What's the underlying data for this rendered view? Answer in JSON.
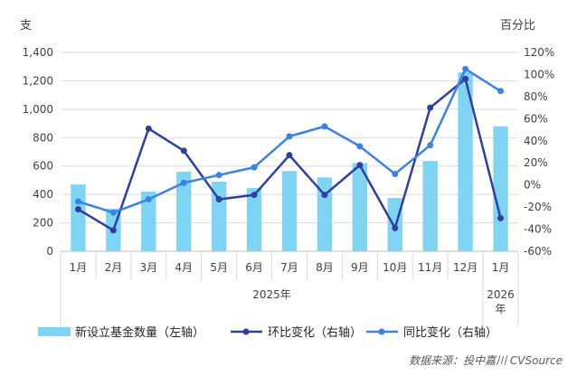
{
  "chart_data": {
    "type": "bar",
    "left_unit": "支",
    "right_unit": "百分比",
    "categories": [
      "1月",
      "2月",
      "3月",
      "4月",
      "5月",
      "6月",
      "7月",
      "8月",
      "9月",
      "10月",
      "11月",
      "12月",
      "1月"
    ],
    "year_groups": [
      {
        "label": "2025年",
        "from": 0,
        "to": 11
      },
      {
        "label": "2026\n年",
        "from": 12,
        "to": 12
      }
    ],
    "y_left": {
      "min": 0,
      "max": 1400,
      "step": 200,
      "tick_labels": [
        "0",
        "200",
        "400",
        "600",
        "800",
        "1,000",
        "1,200",
        "1,400"
      ]
    },
    "y_right": {
      "min": -60,
      "max": 120,
      "step": 20,
      "tick_labels": [
        "-60%",
        "-40%",
        "-20%",
        "0%",
        "20%",
        "40%",
        "60%",
        "80%",
        "100%",
        "120%"
      ]
    },
    "series": [
      {
        "name": "新设立基金数量（左轴）",
        "kind": "bar",
        "axis": "left",
        "color": "#7fd4f4",
        "values": [
          470,
          300,
          420,
          560,
          490,
          445,
          565,
          520,
          620,
          375,
          635,
          1260,
          880
        ]
      },
      {
        "name": "环比变化（右轴）",
        "kind": "line",
        "axis": "right",
        "color": "#2e3f9e",
        "values": [
          -22,
          -41,
          51,
          31,
          -13,
          -9,
          27,
          -9,
          18,
          -39,
          70,
          96,
          -30
        ]
      },
      {
        "name": "同比变化（右轴）",
        "kind": "line",
        "axis": "right",
        "color": "#3a82e6",
        "values": [
          -15,
          -25,
          -13,
          2,
          9,
          16,
          44,
          53,
          35,
          10,
          36,
          105,
          85
        ]
      }
    ],
    "grid": true,
    "legend_position": "bottom"
  },
  "source_text": "数据来源：投中嘉川 CVSource"
}
